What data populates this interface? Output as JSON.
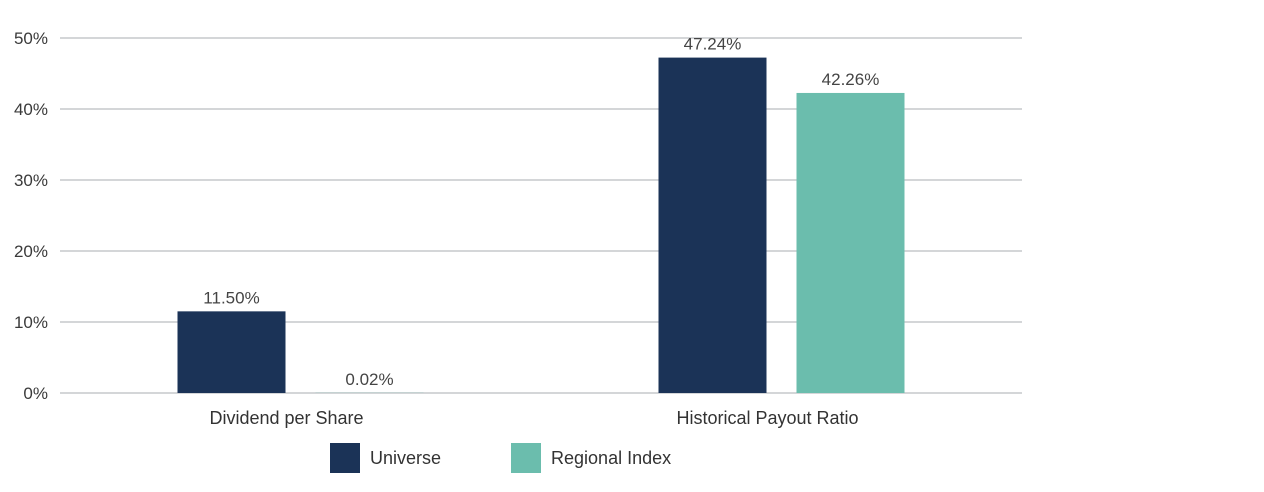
{
  "chart_data": {
    "type": "bar",
    "categories": [
      "Dividend per Share",
      "Historical Payout Ratio"
    ],
    "series": [
      {
        "name": "Universe",
        "values": [
          11.5,
          47.24
        ],
        "labels": [
          "11.50%",
          "47.24%"
        ],
        "color": "#1b3357"
      },
      {
        "name": "Regional Index",
        "values": [
          0.02,
          42.26
        ],
        "labels": [
          "0.02%",
          "42.26%"
        ],
        "color": "#6bbdad"
      }
    ],
    "y_ticks": [
      0,
      10,
      20,
      30,
      40,
      50
    ],
    "y_tick_labels": [
      "0%",
      "10%",
      "20%",
      "30%",
      "40%",
      "50%"
    ],
    "ylim": [
      0,
      50
    ],
    "grid": true,
    "legend_placement": "bottom"
  }
}
